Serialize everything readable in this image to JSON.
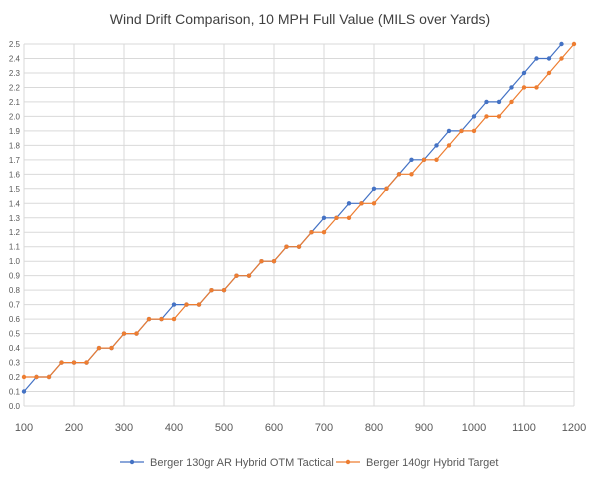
{
  "chart_data": {
    "type": "line",
    "title": "Wind Drift Comparison, 10 MPH Full Value (MILS over Yards)",
    "xlabel": "",
    "ylabel": "",
    "xlim": [
      100,
      1200
    ],
    "ylim": [
      0.0,
      2.5
    ],
    "x_ticks": [
      "100",
      "200",
      "300",
      "400",
      "500",
      "600",
      "700",
      "800",
      "900",
      "1000",
      "1100",
      "1200"
    ],
    "y_ticks": [
      "0.0",
      "0.1",
      "0.2",
      "0.3",
      "0.4",
      "0.5",
      "0.6",
      "0.7",
      "0.8",
      "0.9",
      "1.0",
      "1.1",
      "1.2",
      "1.3",
      "1.4",
      "1.5",
      "1.6",
      "1.7",
      "1.8",
      "1.9",
      "2.0",
      "2.1",
      "2.2",
      "2.3",
      "2.4",
      "2.5"
    ],
    "grid": true,
    "legend_position": "bottom",
    "x": [
      100,
      125,
      150,
      175,
      200,
      225,
      250,
      275,
      300,
      325,
      350,
      375,
      400,
      425,
      450,
      475,
      500,
      525,
      550,
      575,
      600,
      625,
      650,
      675,
      700,
      725,
      750,
      775,
      800,
      825,
      850,
      875,
      900,
      925,
      950,
      975,
      1000,
      1025,
      1050,
      1075,
      1100,
      1125,
      1150,
      1175,
      1200
    ],
    "series": [
      {
        "name": "Berger 130gr AR Hybrid OTM Tactical",
        "color": "#4472C4",
        "values": [
          0.1,
          0.2,
          0.2,
          0.3,
          0.3,
          0.3,
          0.4,
          0.4,
          0.5,
          0.5,
          0.6,
          0.6,
          0.7,
          0.7,
          0.7,
          0.8,
          0.8,
          0.9,
          0.9,
          1.0,
          1.0,
          1.1,
          1.1,
          1.2,
          1.3,
          1.3,
          1.4,
          1.4,
          1.5,
          1.5,
          1.6,
          1.7,
          1.7,
          1.8,
          1.9,
          1.9,
          2.0,
          2.1,
          2.1,
          2.2,
          2.3,
          2.4,
          2.4,
          2.5,
          null
        ]
      },
      {
        "name": "Berger 140gr Hybrid Target",
        "color": "#ED7D31",
        "values": [
          0.2,
          0.2,
          0.2,
          0.3,
          0.3,
          0.3,
          0.4,
          0.4,
          0.5,
          0.5,
          0.6,
          0.6,
          0.6,
          0.7,
          0.7,
          0.8,
          0.8,
          0.9,
          0.9,
          1.0,
          1.0,
          1.1,
          1.1,
          1.2,
          1.2,
          1.3,
          1.3,
          1.4,
          1.4,
          1.5,
          1.6,
          1.6,
          1.7,
          1.7,
          1.8,
          1.9,
          1.9,
          2.0,
          2.0,
          2.1,
          2.2,
          2.2,
          2.3,
          2.4,
          2.5
        ]
      }
    ]
  }
}
